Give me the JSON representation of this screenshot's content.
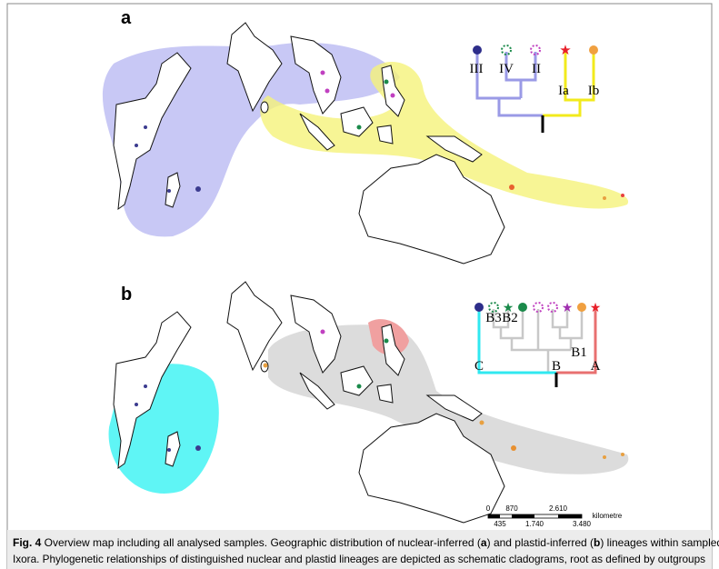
{
  "panels": [
    {
      "label": "a",
      "clade_labels": [
        "III",
        "IV",
        "II",
        "Ia",
        "Ib"
      ]
    },
    {
      "label": "b",
      "clade_labels": [
        "B3",
        "B2",
        "B1",
        "C",
        "B",
        "A"
      ]
    }
  ],
  "scale_bar": {
    "top": [
      "0",
      "870",
      "2.610"
    ],
    "bottom": [
      "435",
      "1.740",
      "3.480"
    ],
    "unit": "kilometre"
  },
  "caption": {
    "label": "Fig. 4",
    "parts": [
      " Overview map including all analysed samples. Geographic distribution of nuclear-inferred (",
      "a",
      ") and plastid-inferred (",
      "b",
      ") lineages within sampled"
    ],
    "line2": "Ixora. Phylogenetic relationships of distinguished nuclear and plastid lineages are depicted as schematic cladograms, root as defined by outgroups"
  }
}
